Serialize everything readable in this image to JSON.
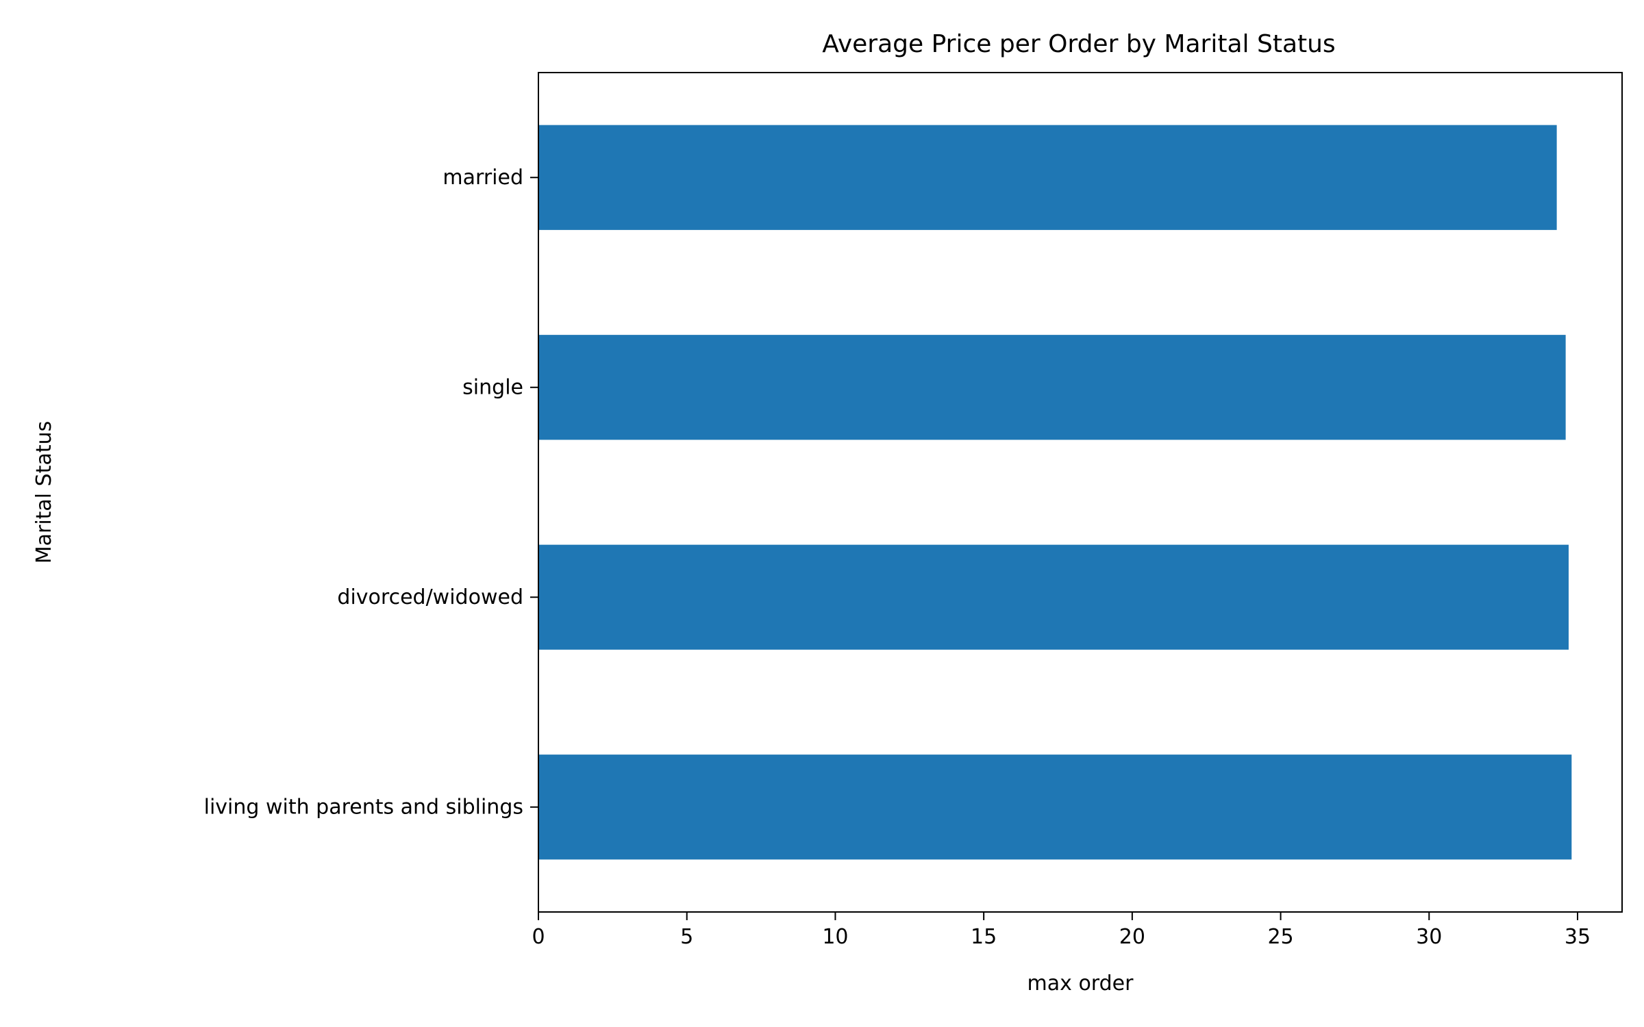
{
  "chart_data": {
    "type": "bar",
    "orientation": "horizontal",
    "title": "Average Price per Order by Marital Status",
    "xlabel": "max order",
    "ylabel": "Marital Status",
    "categories": [
      "married",
      "single",
      "divorced/widowed",
      "living with parents and siblings"
    ],
    "values": [
      34.3,
      34.6,
      34.7,
      34.8
    ],
    "xlim": [
      0,
      36.5
    ],
    "xticks": [
      0,
      5,
      10,
      15,
      20,
      25,
      30,
      35
    ],
    "grid": false,
    "bar_color": "#1f77b4"
  }
}
